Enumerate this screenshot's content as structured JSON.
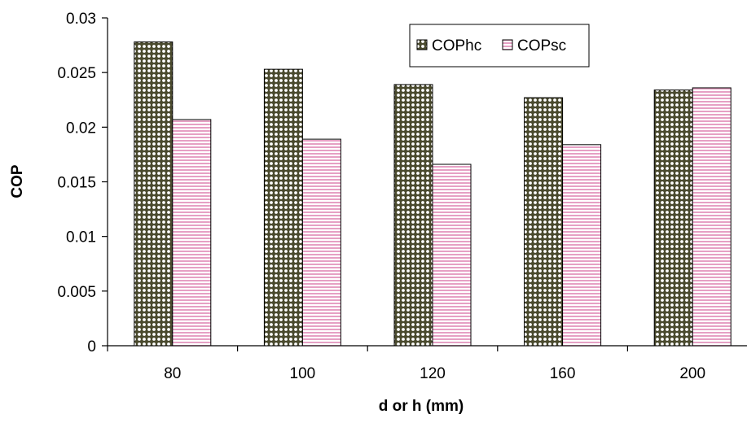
{
  "chart_data": {
    "type": "bar",
    "title": "",
    "xlabel": "d or h (mm)",
    "ylabel": "COP",
    "categories": [
      "80",
      "100",
      "120",
      "160",
      "200"
    ],
    "series": [
      {
        "name": "COPhc",
        "values": [
          0.0278,
          0.0253,
          0.0239,
          0.0227,
          0.0234
        ],
        "color": "#4a4a2e",
        "pattern": "dots"
      },
      {
        "name": "COPsc",
        "values": [
          0.0207,
          0.0189,
          0.0166,
          0.0184,
          0.0236
        ],
        "color": "#e6a0c4",
        "pattern": "horizontal-stripes"
      }
    ],
    "ylim": [
      0,
      0.03
    ],
    "yticks": [
      "0",
      "0.005",
      "0.01",
      "0.015",
      "0.02",
      "0.025",
      "0.03"
    ],
    "grid": false,
    "legend_position": "top-right"
  }
}
